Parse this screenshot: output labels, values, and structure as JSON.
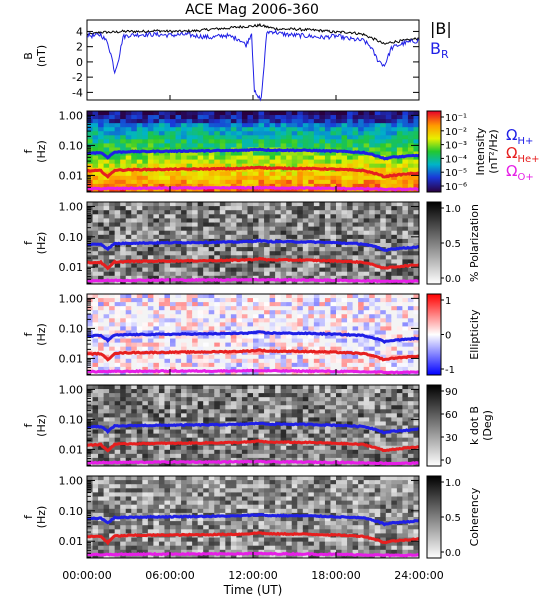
{
  "title": "ACE Mag 2006-360",
  "time_axis": {
    "ticks": [
      "00:00:00",
      "06:00:00",
      "12:00:00",
      "18:00:00",
      "24:00:00"
    ],
    "tick_hours": [
      0,
      6,
      12,
      18,
      24
    ],
    "xlabel": "Time (UT)",
    "range_hours": [
      0,
      24
    ]
  },
  "colors": {
    "B": "#000000",
    "BR": "#1f1fe6",
    "H": "#1f1fe6",
    "He": "#e61f1f",
    "O": "#e61fe6"
  },
  "legend": {
    "B_label": "|B|",
    "BR_base": "B",
    "BR_sub": "R",
    "omega": "Ω",
    "H_sub": "H+",
    "He_sub": "He+",
    "O_sub": "O+"
  },
  "chart_data": [
    {
      "type": "line",
      "panel": "field",
      "ylabel": "B",
      "yunit": "(nT)",
      "ylim": [
        -5,
        5.5
      ],
      "yticks": [
        4,
        2,
        0,
        -2,
        -4
      ],
      "series": [
        {
          "name": "|B|",
          "color": "#000000",
          "x": [
            0,
            0.5,
            1,
            1.5,
            2,
            2.5,
            3,
            4,
            5,
            6,
            7,
            8,
            9,
            10,
            11,
            12,
            12.5,
            13,
            13.5,
            14,
            15,
            16,
            17,
            18,
            19,
            20,
            21,
            21.5,
            22,
            23,
            24
          ],
          "y": [
            3.6,
            3.7,
            3.9,
            3.9,
            3.9,
            4.0,
            4.0,
            4.0,
            4.1,
            4.0,
            4.0,
            4.1,
            4.3,
            4.4,
            4.6,
            4.7,
            4.8,
            4.6,
            4.4,
            4.3,
            4.3,
            4.2,
            4.1,
            3.9,
            3.9,
            3.6,
            2.8,
            2.3,
            2.6,
            2.8,
            3.1
          ]
        },
        {
          "name": "B_R",
          "color": "#1f1fe6",
          "x": [
            0,
            0.5,
            1,
            1.5,
            1.8,
            2,
            2.3,
            2.6,
            3,
            4,
            5,
            6,
            7,
            8,
            9,
            10,
            11,
            11.5,
            11.9,
            12.1,
            12.3,
            12.6,
            13,
            13.5,
            14,
            15,
            16,
            17,
            18,
            19,
            20,
            20.5,
            21,
            21.5,
            22,
            22.5,
            23,
            24
          ],
          "y": [
            3.5,
            3.4,
            3.6,
            2.5,
            0.5,
            -1.3,
            0.5,
            3.3,
            3.5,
            3.6,
            3.6,
            3.5,
            3.6,
            3.4,
            3.2,
            3.5,
            3.0,
            2.2,
            3.8,
            -3.8,
            -4.6,
            -4.8,
            3.9,
            4.0,
            3.7,
            3.5,
            3.4,
            3.2,
            3.4,
            3.0,
            2.8,
            2.0,
            0.3,
            -0.5,
            1.8,
            2.2,
            2.5,
            2.8
          ]
        }
      ]
    },
    {
      "type": "heatmap",
      "panel": "intensity",
      "ylabel": "f",
      "yunit": "(Hz)",
      "yticks": [
        "1.00",
        "0.10",
        "0.01"
      ],
      "colorbar_label": "Intensity",
      "colorbar_unit": "(nT²/Hz)",
      "colorbar_ticks": [
        "10⁻¹",
        "10⁻²",
        "10⁻³",
        "10⁻⁴",
        "10⁻⁵",
        "10⁻⁶"
      ]
    },
    {
      "type": "heatmap",
      "panel": "polarization",
      "ylabel": "f",
      "yunit": "(Hz)",
      "yticks": [
        "1.00",
        "0.10",
        "0.01"
      ],
      "colorbar_label": "% Polarization",
      "colorbar_ticks": [
        "1.0",
        "0.5",
        "0.0"
      ]
    },
    {
      "type": "heatmap",
      "panel": "ellipticity",
      "ylabel": "f",
      "yunit": "(Hz)",
      "yticks": [
        "1.00",
        "0.10",
        "0.01"
      ],
      "colorbar_label": "Ellipticity",
      "colorbar_ticks": [
        "1",
        "0",
        "-1"
      ]
    },
    {
      "type": "heatmap",
      "panel": "kdotb",
      "ylabel": "f",
      "yunit": "(Hz)",
      "yticks": [
        "1.00",
        "0.10",
        "0.01"
      ],
      "colorbar_label": "k dot B",
      "colorbar_unit": "(Deg)",
      "colorbar_ticks": [
        "90",
        "60",
        "30",
        "0"
      ]
    },
    {
      "type": "heatmap",
      "panel": "coherency",
      "ylabel": "f",
      "yunit": "(Hz)",
      "yticks": [
        "1.00",
        "0.10",
        "0.01"
      ],
      "colorbar_label": "Coherency",
      "colorbar_ticks": [
        "1.0",
        "0.5",
        "0.0"
      ]
    },
    {
      "type": "line",
      "panel": "gyrofrequencies",
      "series": [
        {
          "name": "Ω_H+",
          "color": "#1f1fe6",
          "x": [
            0,
            1,
            1.5,
            2,
            2.5,
            3,
            6,
            9,
            11,
            12,
            12.5,
            13,
            16,
            18,
            20,
            21,
            21.5,
            22,
            23,
            24
          ],
          "y": [
            0.055,
            0.058,
            0.04,
            0.06,
            0.06,
            0.062,
            0.064,
            0.066,
            0.068,
            0.072,
            0.075,
            0.07,
            0.068,
            0.064,
            0.058,
            0.045,
            0.036,
            0.04,
            0.043,
            0.047
          ]
        },
        {
          "name": "Ω_He+",
          "color": "#e61f1f",
          "x": [
            0,
            1,
            1.5,
            2,
            2.5,
            3,
            6,
            9,
            11,
            12,
            12.5,
            13,
            16,
            18,
            20,
            21,
            21.5,
            22,
            23,
            24
          ],
          "y": [
            0.014,
            0.0145,
            0.009,
            0.015,
            0.015,
            0.0155,
            0.016,
            0.0165,
            0.017,
            0.018,
            0.019,
            0.0175,
            0.017,
            0.016,
            0.0145,
            0.011,
            0.009,
            0.01,
            0.011,
            0.012
          ]
        },
        {
          "name": "Ω_O+",
          "color": "#e61fe6",
          "x": [
            0,
            3,
            6,
            9,
            12,
            15,
            18,
            21,
            22,
            24
          ],
          "y": [
            0.0036,
            0.0037,
            0.0038,
            0.0038,
            0.0039,
            0.0038,
            0.0037,
            0.0035,
            0.0034,
            0.0035
          ]
        }
      ]
    }
  ]
}
